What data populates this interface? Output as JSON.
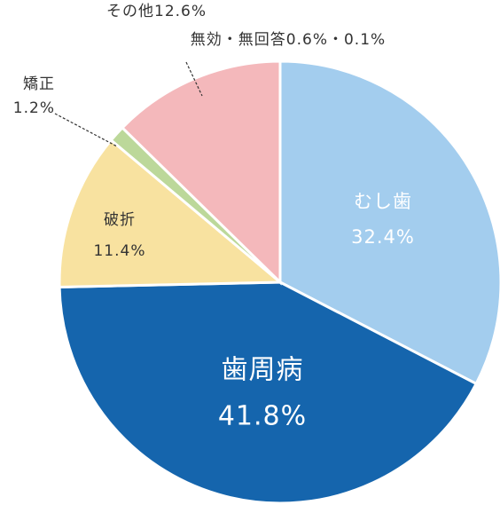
{
  "chart_data": {
    "type": "pie",
    "categories": [
      "むし歯",
      "歯周病",
      "破折",
      "矯正",
      "その他"
    ],
    "values": [
      32.4,
      41.8,
      11.4,
      1.2,
      12.6
    ],
    "value_labels": [
      "32.4%",
      "41.8%",
      "11.4%",
      "1.2%",
      "12.6%"
    ],
    "colors": [
      "#a3cdee",
      "#1565ad",
      "#f8e2a0",
      "#bcd89a",
      "#f4b8bb"
    ],
    "annotation": "無効・無回答0.6%・0.1%"
  }
}
